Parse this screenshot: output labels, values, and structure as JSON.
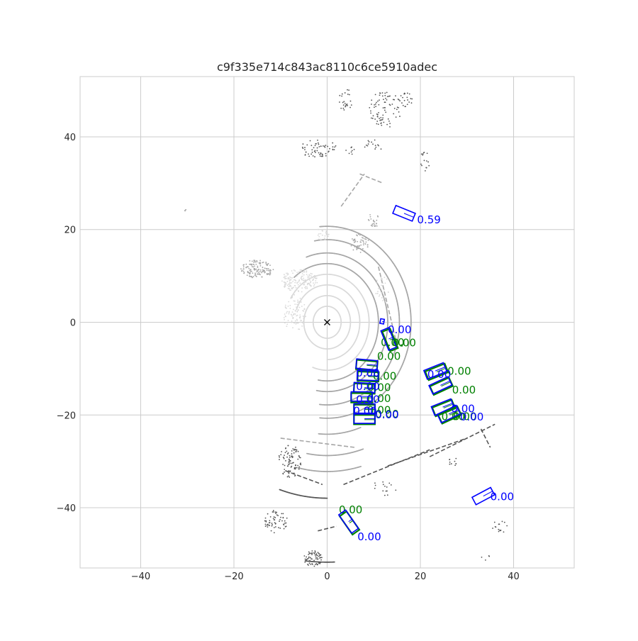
{
  "chart_data": {
    "type": "scatter",
    "title": "c9f335e714c843ac8110c6ce5910adec",
    "xlabel": "",
    "ylabel": "",
    "xlim": [
      -53,
      53
    ],
    "ylim": [
      -53,
      53
    ],
    "grid": true,
    "xticks": [
      -40,
      -20,
      0,
      20,
      40
    ],
    "yticks": [
      -40,
      -20,
      0,
      20,
      40
    ],
    "xtick_labels": [
      "−40",
      "−20",
      "0",
      "20",
      "40"
    ],
    "ytick_labels": [
      "−40",
      "−20",
      "0",
      "20",
      "40"
    ],
    "ego": {
      "x": 0,
      "y": 0,
      "marker": "x"
    },
    "colors": {
      "ground_truth": "#008000",
      "prediction": "#0000ff",
      "points_near": "#d9d9d9",
      "points_mid": "#a6a6a6",
      "points_far": "#555555",
      "grid": "#cccccc"
    },
    "point_clusters": [
      {
        "x": 4,
        "y": 48,
        "rx": 1.5,
        "ry": 2.5,
        "n": 25,
        "tone": "far"
      },
      {
        "x": 12.5,
        "y": 46,
        "rx": 3.5,
        "ry": 4,
        "n": 80,
        "tone": "far"
      },
      {
        "x": 17,
        "y": 48,
        "rx": 1.5,
        "ry": 1.5,
        "n": 20,
        "tone": "far"
      },
      {
        "x": -2,
        "y": 37.5,
        "rx": 4,
        "ry": 2,
        "n": 60,
        "tone": "far"
      },
      {
        "x": 5,
        "y": 37,
        "rx": 1,
        "ry": 1,
        "n": 8,
        "tone": "far"
      },
      {
        "x": 10,
        "y": 38,
        "rx": 2,
        "ry": 1.5,
        "n": 15,
        "tone": "far"
      },
      {
        "x": 21,
        "y": 35,
        "rx": 1,
        "ry": 2.5,
        "n": 15,
        "tone": "far"
      },
      {
        "x": -30.5,
        "y": 24,
        "rx": 0.3,
        "ry": 0.4,
        "n": 4,
        "tone": "mid"
      },
      {
        "x": -15,
        "y": 11.5,
        "rx": 3.5,
        "ry": 2,
        "n": 140,
        "tone": "mid"
      },
      {
        "x": -6,
        "y": 9,
        "rx": 4,
        "ry": 2.5,
        "n": 160,
        "tone": "near"
      },
      {
        "x": -7,
        "y": 2,
        "rx": 2.5,
        "ry": 4,
        "n": 100,
        "tone": "near"
      },
      {
        "x": 7,
        "y": 17,
        "rx": 2,
        "ry": 2,
        "n": 50,
        "tone": "mid"
      },
      {
        "x": 10,
        "y": 22,
        "rx": 1.5,
        "ry": 1.5,
        "n": 25,
        "tone": "mid"
      },
      {
        "x": -1,
        "y": 19,
        "rx": 1.5,
        "ry": 1.5,
        "n": 25,
        "tone": "near"
      },
      {
        "x": 12,
        "y": 7,
        "rx": 2,
        "ry": 3,
        "n": 30,
        "tone": "near"
      },
      {
        "x": -8,
        "y": -30,
        "rx": 2.5,
        "ry": 3.5,
        "n": 90,
        "tone": "far"
      },
      {
        "x": -11,
        "y": -43,
        "rx": 2.5,
        "ry": 2.5,
        "n": 60,
        "tone": "far"
      },
      {
        "x": -3,
        "y": -51,
        "rx": 2,
        "ry": 1.8,
        "n": 70,
        "tone": "far"
      },
      {
        "x": 27,
        "y": -30,
        "rx": 1,
        "ry": 1,
        "n": 10,
        "tone": "far"
      },
      {
        "x": 37,
        "y": -44,
        "rx": 2,
        "ry": 1.5,
        "n": 15,
        "tone": "far"
      },
      {
        "x": 12,
        "y": -36,
        "rx": 3,
        "ry": 2,
        "n": 15,
        "tone": "far"
      },
      {
        "x": 34,
        "y": -51,
        "rx": 1,
        "ry": 1,
        "n": 4,
        "tone": "far"
      }
    ],
    "ring_arcs": [
      {
        "r": 3,
        "t0": 0,
        "t1": 360,
        "tone": "near"
      },
      {
        "r": 5,
        "t0": 0,
        "t1": 360,
        "tone": "near"
      },
      {
        "r": 7,
        "t0": -90,
        "t1": 160,
        "tone": "near"
      },
      {
        "r": 9,
        "t0": -110,
        "t1": 150,
        "tone": "near"
      },
      {
        "r": 11,
        "t0": -100,
        "t1": 130,
        "tone": "mid"
      },
      {
        "r": 13,
        "t0": -100,
        "t1": 110,
        "tone": "mid"
      },
      {
        "r": 15.5,
        "t0": -96,
        "t1": 100,
        "tone": "mid"
      },
      {
        "r": 18,
        "t0": -95,
        "t1": 95,
        "tone": "mid"
      },
      {
        "r": 21,
        "t0": -95,
        "t1": -70,
        "tone": "mid"
      },
      {
        "r": 25,
        "t0": -100,
        "t1": -72,
        "tone": "mid"
      },
      {
        "r": 28,
        "t0": -103,
        "t1": -75,
        "tone": "mid"
      },
      {
        "r": 33,
        "t0": -108,
        "t1": -90,
        "tone": "far"
      },
      {
        "r": 45,
        "t0": -96,
        "t1": -88,
        "tone": "far"
      }
    ],
    "line_features": [
      {
        "x1": 3,
        "y1": 25,
        "x2": 8,
        "y2": 32,
        "tone": "mid"
      },
      {
        "x1": 7,
        "y1": 32,
        "x2": 12,
        "y2": 30,
        "tone": "mid"
      },
      {
        "x1": 11,
        "y1": 12,
        "x2": 15,
        "y2": -5,
        "tone": "mid"
      },
      {
        "x1": 3.5,
        "y1": -35,
        "x2": 22,
        "y2": -27.5,
        "tone": "far"
      },
      {
        "x1": 13,
        "y1": -31,
        "x2": 30,
        "y2": -25,
        "tone": "far"
      },
      {
        "x1": 22,
        "y1": -29,
        "x2": 36,
        "y2": -22,
        "tone": "far"
      },
      {
        "x1": 33,
        "y1": -23,
        "x2": 35,
        "y2": -27,
        "tone": "far"
      },
      {
        "x1": -9,
        "y1": -32,
        "x2": -1,
        "y2": -35,
        "tone": "far"
      },
      {
        "x1": -2,
        "y1": -45,
        "x2": 2,
        "y2": -44,
        "tone": "far"
      },
      {
        "x1": -10,
        "y1": -25,
        "x2": 6,
        "y2": -27,
        "tone": "mid"
      }
    ],
    "boxes": [
      {
        "kind": "prediction",
        "cx": 16.5,
        "cy": 23.5,
        "w": 4.5,
        "l": 1.8,
        "angle": -22,
        "label": "0.59",
        "lx": 19.3,
        "ly": 21.3
      },
      {
        "kind": "prediction",
        "cx": 11.8,
        "cy": 0.2,
        "w": 0.8,
        "l": 1.0,
        "angle": -10,
        "label": "",
        "lx": 0,
        "ly": 0
      },
      {
        "kind": "ground_truth",
        "cx": 13.5,
        "cy": -3.8,
        "w": 1.8,
        "l": 4.5,
        "angle": 22,
        "label": "0.00",
        "lx": 11.5,
        "ly": -5.1
      },
      {
        "kind": "prediction",
        "cx": 13.2,
        "cy": -3.6,
        "w": 1.8,
        "l": 4.5,
        "angle": 22,
        "label": "0.00",
        "lx": 13,
        "ly": -2.4
      },
      {
        "kind": "ground_truth",
        "cx": 16,
        "cy": -5,
        "w": 0.1,
        "l": 0.1,
        "angle": 0,
        "label": "0.00",
        "lx": 14,
        "ly": -5.2
      },
      {
        "kind": "ground_truth",
        "cx": 8.5,
        "cy": -9.3,
        "w": 4.5,
        "l": 2.0,
        "angle": -5,
        "label": "0.00",
        "lx": 10.7,
        "ly": -8.1
      },
      {
        "kind": "prediction",
        "cx": 8.5,
        "cy": -9.1,
        "w": 4.5,
        "l": 2.0,
        "angle": -5,
        "label": "",
        "lx": 0,
        "ly": 0
      },
      {
        "kind": "ground_truth",
        "cx": 8.8,
        "cy": -11.7,
        "w": 4.5,
        "l": 2.0,
        "angle": -2,
        "label": "0.00",
        "lx": 9.8,
        "ly": -12.4
      },
      {
        "kind": "prediction",
        "cx": 8.7,
        "cy": -11.5,
        "w": 4.5,
        "l": 2.0,
        "angle": -2,
        "label": "0.00",
        "lx": 6.2,
        "ly": -11.7
      },
      {
        "kind": "ground_truth",
        "cx": 8.0,
        "cy": -14.3,
        "w": 4.5,
        "l": 2.0,
        "angle": -3,
        "label": "0.00",
        "lx": 8.6,
        "ly": -14.8
      },
      {
        "kind": "prediction",
        "cx": 8.0,
        "cy": -14.1,
        "w": 4.5,
        "l": 2.0,
        "angle": -3,
        "label": "0.00",
        "lx": 6.2,
        "ly": -14.6
      },
      {
        "kind": "ground_truth",
        "cx": 7.4,
        "cy": -16.3,
        "w": 4.5,
        "l": 2.0,
        "angle": 0,
        "label": "0.00",
        "lx": 8.6,
        "ly": -17.2
      },
      {
        "kind": "prediction",
        "cx": 7.4,
        "cy": -16.0,
        "w": 4.5,
        "l": 2.0,
        "angle": 0,
        "label": "0.00",
        "lx": 6.2,
        "ly": -17.4
      },
      {
        "kind": "ground_truth",
        "cx": 8.0,
        "cy": -18.8,
        "w": 4.5,
        "l": 2.0,
        "angle": 0,
        "label": "0.00",
        "lx": 8.6,
        "ly": -19.7
      },
      {
        "kind": "prediction",
        "cx": 8.0,
        "cy": -18.6,
        "w": 4.5,
        "l": 2.0,
        "angle": 0,
        "label": "0.00",
        "lx": 5.6,
        "ly": -19.9
      },
      {
        "kind": "ground_truth",
        "cx": 8.0,
        "cy": -21.0,
        "w": 4.5,
        "l": 2.0,
        "angle": 0,
        "label": "0.00",
        "lx": 10.3,
        "ly": -20.6
      },
      {
        "kind": "prediction",
        "cx": 8.0,
        "cy": -20.8,
        "w": 4.5,
        "l": 2.0,
        "angle": 0,
        "label": "0.00",
        "lx": 10.3,
        "ly": -20.7
      },
      {
        "kind": "ground_truth",
        "cx": 23.5,
        "cy": -10.7,
        "w": 4.5,
        "l": 2.0,
        "angle": 22,
        "label": "0.00",
        "lx": 25.8,
        "ly": -11.3
      },
      {
        "kind": "prediction",
        "cx": 23.2,
        "cy": -10.5,
        "w": 4.5,
        "l": 2.0,
        "angle": 22,
        "label": "0.00",
        "lx": 21.5,
        "ly": -12.0
      },
      {
        "kind": "ground_truth",
        "cx": 24.5,
        "cy": -13.8,
        "w": 4.5,
        "l": 2.0,
        "angle": 25,
        "label": "0.00",
        "lx": 26.8,
        "ly": -15.4
      },
      {
        "kind": "prediction",
        "cx": 24.3,
        "cy": -13.6,
        "w": 4.5,
        "l": 2.0,
        "angle": 25,
        "label": "",
        "lx": 0,
        "ly": 0
      },
      {
        "kind": "ground_truth",
        "cx": 25.0,
        "cy": -18.5,
        "w": 4.5,
        "l": 2.0,
        "angle": 22,
        "label": "0.00",
        "lx": 27.0,
        "ly": -21.1
      },
      {
        "kind": "prediction",
        "cx": 24.8,
        "cy": -18.3,
        "w": 4.5,
        "l": 2.0,
        "angle": 22,
        "label": "0.00",
        "lx": 26.6,
        "ly": -19.4
      },
      {
        "kind": "ground_truth",
        "cx": 26.3,
        "cy": -20.0,
        "w": 4.5,
        "l": 2.0,
        "angle": 25,
        "label": "0.00",
        "lx": 24.5,
        "ly": -21.1
      },
      {
        "kind": "prediction",
        "cx": 26.1,
        "cy": -19.8,
        "w": 4.5,
        "l": 2.0,
        "angle": 25,
        "label": "0.00",
        "lx": 28.5,
        "ly": -21.2
      },
      {
        "kind": "prediction",
        "cx": 33.5,
        "cy": -37.5,
        "w": 4.5,
        "l": 1.8,
        "angle": 28,
        "label": "0.00",
        "lx": 35.0,
        "ly": -38.4
      },
      {
        "kind": "ground_truth",
        "cx": 4.8,
        "cy": -43.3,
        "w": 1.8,
        "l": 4.8,
        "angle": 35,
        "label": "0.00",
        "lx": 2.5,
        "ly": -41.2
      },
      {
        "kind": "prediction",
        "cx": 4.6,
        "cy": -43.0,
        "w": 1.8,
        "l": 4.8,
        "angle": 35,
        "label": "0.00",
        "lx": 6.5,
        "ly": -47.0
      }
    ]
  }
}
